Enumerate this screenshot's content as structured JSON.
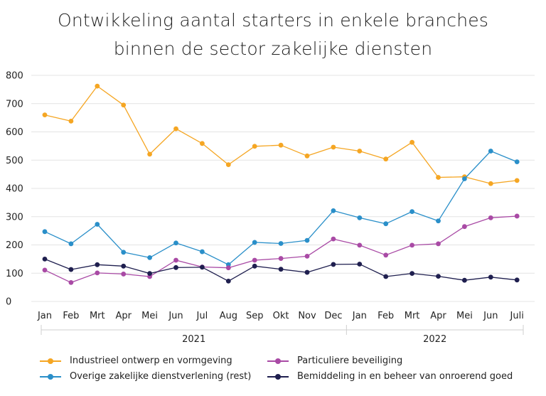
{
  "chart_data": {
    "type": "line",
    "title": [
      "Ontwikkeling aantal starters in enkele branches",
      "binnen de sector zakelijke diensten"
    ],
    "categories": [
      "Jan",
      "Feb",
      "Mrt",
      "Apr",
      "Mei",
      "Jun",
      "Jul",
      "Aug",
      "Sep",
      "Okt",
      "Nov",
      "Dec",
      "Jan",
      "Feb",
      "Mrt",
      "Apr",
      "Mei",
      "Jun",
      "Juli"
    ],
    "year_groups": [
      {
        "label": "2021",
        "start": 0,
        "end": 11
      },
      {
        "label": "2022",
        "start": 12,
        "end": 18
      }
    ],
    "ylim": [
      0,
      800
    ],
    "yticks": [
      0,
      100,
      200,
      300,
      400,
      500,
      600,
      700,
      800
    ],
    "grid": true,
    "legend_position": "bottom",
    "series": [
      {
        "name": "Industrieel ontwerp en vormgeving",
        "color": "#f5a623",
        "values": [
          660,
          638,
          762,
          695,
          521,
          611,
          559,
          484,
          549,
          553,
          515,
          546,
          532,
          504,
          563,
          439,
          441,
          417,
          428
        ]
      },
      {
        "name": "Overige zakelijke dienstverlening (rest)",
        "color": "#2a8fc9",
        "values": [
          247,
          204,
          273,
          174,
          155,
          207,
          176,
          130,
          209,
          205,
          216,
          321,
          296,
          275,
          318,
          285,
          434,
          532,
          494
        ]
      },
      {
        "name": "Particuliere beveiliging",
        "color": "#a94aa5",
        "values": [
          111,
          67,
          101,
          97,
          88,
          146,
          122,
          119,
          146,
          152,
          160,
          221,
          199,
          164,
          199,
          204,
          265,
          296,
          302
        ]
      },
      {
        "name": "Bemiddeling in en beheer van onroerend goed",
        "color": "#1f1f4f",
        "values": [
          150,
          113,
          130,
          125,
          99,
          120,
          121,
          72,
          125,
          114,
          103,
          131,
          132,
          88,
          99,
          89,
          75,
          86,
          76
        ]
      }
    ]
  }
}
